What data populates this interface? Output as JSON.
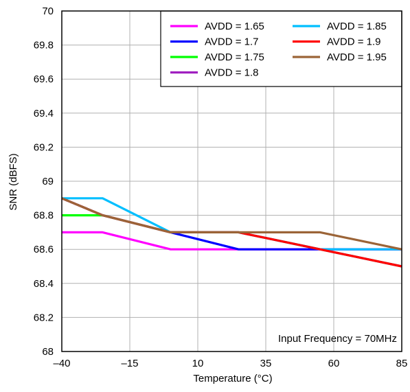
{
  "chart_data": {
    "type": "line",
    "xlabel": "Temperature (°C)",
    "ylabel": "SNR (dBFS)",
    "xlim": [
      -40,
      85
    ],
    "ylim": [
      68,
      70
    ],
    "xticks": [
      -40,
      -15,
      10,
      35,
      60,
      85
    ],
    "xtick_labels": [
      "–40",
      "–15",
      "10",
      "35",
      "60",
      "85"
    ],
    "yticks": [
      68,
      68.2,
      68.4,
      68.6,
      68.8,
      69,
      69.2,
      69.4,
      69.6,
      69.8,
      70
    ],
    "ytick_labels": [
      "68",
      "68.2",
      "68.4",
      "68.6",
      "68.8",
      "69",
      "69.2",
      "69.4",
      "69.6",
      "69.8",
      "70"
    ],
    "grid": true,
    "legend_position": "top-right",
    "annotation": "Input Frequency = 70MHz",
    "series": [
      {
        "name": "AVDD = 1.65",
        "color": "#ff00ff",
        "points": [
          [
            -40,
            68.7
          ],
          [
            -25,
            68.7
          ],
          [
            0,
            68.6
          ],
          [
            25,
            68.6
          ],
          [
            55,
            68.6
          ],
          [
            85,
            68.6
          ]
        ]
      },
      {
        "name": "AVDD = 1.7",
        "color": "#0000ff",
        "points": [
          [
            -40,
            68.9
          ],
          [
            -25,
            68.8
          ],
          [
            0,
            68.7
          ],
          [
            25,
            68.6
          ],
          [
            55,
            68.6
          ],
          [
            85,
            68.6
          ]
        ]
      },
      {
        "name": "AVDD = 1.75",
        "color": "#00ff00",
        "points": [
          [
            -40,
            68.8
          ],
          [
            -25,
            68.8
          ],
          [
            0,
            68.7
          ],
          [
            25,
            68.7
          ],
          [
            55,
            68.6
          ],
          [
            85,
            68.5
          ]
        ]
      },
      {
        "name": "AVDD = 1.8",
        "color": "#a020c0",
        "points": [
          [
            -40,
            68.9
          ],
          [
            -25,
            68.8
          ],
          [
            0,
            68.7
          ],
          [
            25,
            68.7
          ],
          [
            55,
            68.6
          ],
          [
            85,
            68.5
          ]
        ]
      },
      {
        "name": "AVDD = 1.85",
        "color": "#00bfff",
        "points": [
          [
            -40,
            68.9
          ],
          [
            -25,
            68.9
          ],
          [
            0,
            68.7
          ],
          [
            25,
            68.7
          ],
          [
            55,
            68.6
          ],
          [
            85,
            68.6
          ]
        ]
      },
      {
        "name": "AVDD = 1.9",
        "color": "#ff0000",
        "points": [
          [
            -40,
            68.9
          ],
          [
            -25,
            68.8
          ],
          [
            0,
            68.7
          ],
          [
            25,
            68.7
          ],
          [
            55,
            68.6
          ],
          [
            85,
            68.5
          ]
        ]
      },
      {
        "name": "AVDD = 1.95",
        "color": "#9b6437",
        "points": [
          [
            -40,
            68.9
          ],
          [
            -25,
            68.8
          ],
          [
            0,
            68.7
          ],
          [
            25,
            68.7
          ],
          [
            55,
            68.7
          ],
          [
            85,
            68.6
          ]
        ]
      }
    ]
  }
}
